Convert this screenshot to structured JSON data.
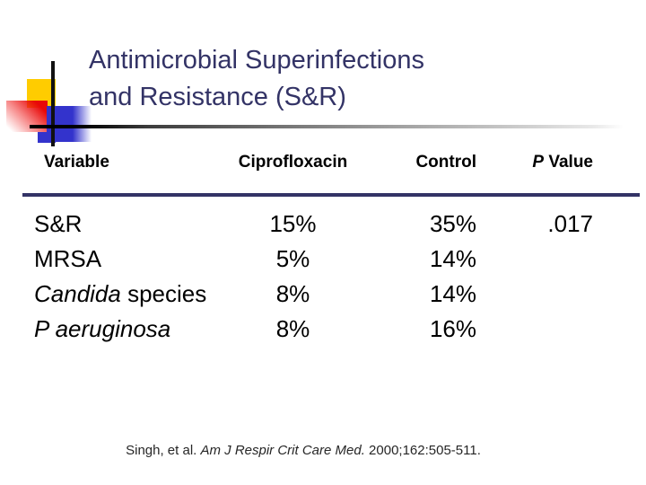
{
  "title": {
    "line1": "Antimicrobial Superinfections",
    "line2": "and Resistance (S&R)"
  },
  "table": {
    "headers": {
      "variable": "Variable",
      "ciprofloxacin": "Ciprofloxacin",
      "control": "Control",
      "p_italic": "P",
      "p_rest": " Value"
    },
    "rows": [
      {
        "name_italic": "",
        "name_regular": "S&R",
        "ciprofloxacin": "15%",
        "control": "35%",
        "p_value": ".017"
      },
      {
        "name_italic": "",
        "name_regular": "MRSA",
        "ciprofloxacin": "5%",
        "control": "14%",
        "p_value": ""
      },
      {
        "name_italic": "Candida",
        "name_regular": " species",
        "ciprofloxacin": "8%",
        "control": "14%",
        "p_value": ""
      },
      {
        "name_italic": "P aeruginosa",
        "name_regular": "",
        "ciprofloxacin": "8%",
        "control": "16%",
        "p_value": ""
      }
    ]
  },
  "citation": {
    "prefix": "Singh, et al. ",
    "journal": "Am J Respir Crit Care Med.",
    "suffix": " 2000;162:505-511."
  },
  "colors": {
    "title_text": "#333366",
    "divider": "#333366",
    "body_text": "#000000",
    "square_yellow": "#FFCC00",
    "square_red": "#E80808",
    "square_blue": "#3333CC",
    "crosshair": "#111111"
  },
  "chart_data": {
    "type": "table",
    "title": "Antimicrobial Superinfections and Resistance (S&R)",
    "columns": [
      "Variable",
      "Ciprofloxacin",
      "Control",
      "P Value"
    ],
    "rows": [
      [
        "S&R",
        "15%",
        "35%",
        ".017"
      ],
      [
        "MRSA",
        "5%",
        "14%",
        ""
      ],
      [
        "Candida species",
        "8%",
        "14%",
        ""
      ],
      [
        "P aeruginosa",
        "8%",
        "16%",
        ""
      ]
    ],
    "source": "Singh, et al. Am J Respir Crit Care Med. 2000;162:505-511."
  }
}
